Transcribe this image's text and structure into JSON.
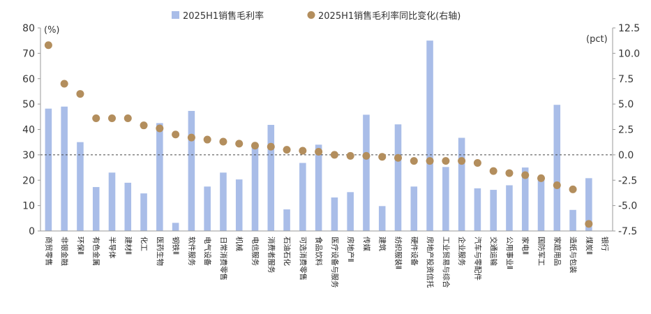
{
  "chart_data": {
    "type": "bar+scatter",
    "legend": {
      "bar_label": "2025H1销售毛利率",
      "dot_label": "2025H1销售毛利率同比变化(右轴)",
      "placement": "top"
    },
    "left_axis": {
      "unit": "(%)",
      "range": [
        0,
        80
      ],
      "ticks": [
        "0",
        "10",
        "20",
        "30",
        "40",
        "50",
        "60",
        "70",
        "80"
      ]
    },
    "right_axis": {
      "unit": "(pct)",
      "range": [
        -7.5,
        12.5
      ],
      "ticks": [
        "-7.5",
        "-5.0",
        "-2.5",
        "0.0",
        "2.5",
        "5.0",
        "7.5",
        "10.0",
        "12.5"
      ]
    },
    "categories": [
      "商贸零售",
      "非银金融",
      "环保Ⅱ",
      "有色金属",
      "半导体",
      "建材Ⅱ",
      "化工",
      "医药生物",
      "钢铁Ⅱ",
      "软件服务",
      "电气设备",
      "日常消费零售",
      "机械",
      "电信服务",
      "消费者服务",
      "石油石化",
      "可选消费零售",
      "食品饮料",
      "医疗设备与服务",
      "房地产Ⅱ",
      "传媒",
      "建筑",
      "纺织服装Ⅱ",
      "硬件设备",
      "房地产投资信托",
      "工业贸易与综合",
      "企业服务",
      "汽车与零配件",
      "交通运输",
      "公用事业Ⅱ",
      "家电Ⅱ",
      "国防军工",
      "家庭用品",
      "造纸与包装",
      "煤炭Ⅱ",
      "银行"
    ],
    "series": [
      {
        "name": "2025H1销售毛利率",
        "type": "bar",
        "axis": "left",
        "color": "#a9bde8",
        "values": [
          48.2,
          49.0,
          35.0,
          17.3,
          23.0,
          19.0,
          14.8,
          42.5,
          3.2,
          47.3,
          17.5,
          23.0,
          20.3,
          33.5,
          41.8,
          8.5,
          26.8,
          34.0,
          13.2,
          15.3,
          45.8,
          9.8,
          42.0,
          17.5,
          75.0,
          25.2,
          36.7,
          16.8,
          16.2,
          18.0,
          25.0,
          21.0,
          49.7,
          8.3,
          20.8,
          null
        ]
      },
      {
        "name": "2025H1销售毛利率同比变化(右轴)",
        "type": "scatter",
        "axis": "right",
        "color": "#b38e5d",
        "values": [
          10.8,
          7.0,
          6.0,
          3.6,
          3.6,
          3.6,
          2.9,
          2.6,
          2.0,
          1.7,
          1.5,
          1.3,
          1.1,
          0.9,
          0.8,
          0.5,
          0.4,
          0.3,
          0.0,
          -0.1,
          -0.1,
          -0.2,
          -0.3,
          -0.6,
          -0.6,
          -0.6,
          -0.6,
          -0.8,
          -1.6,
          -1.8,
          -2.0,
          -2.3,
          -3.0,
          -3.4,
          -6.8,
          null
        ]
      }
    ],
    "reference_line": {
      "axis": "right",
      "value": 0,
      "style": "dashed"
    },
    "grid": false
  }
}
